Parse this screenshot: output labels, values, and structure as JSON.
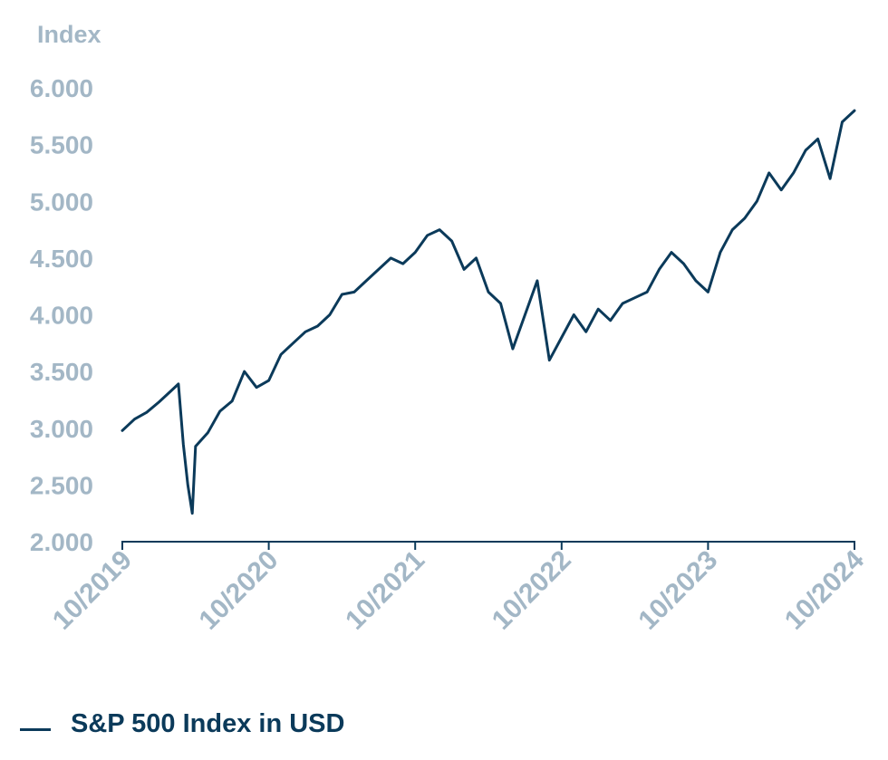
{
  "chart_data": {
    "type": "line",
    "ylabel": "Index",
    "ylim": [
      2000,
      6000
    ],
    "yticks": [
      "6.000",
      "5.500",
      "5.000",
      "4.500",
      "4.000",
      "3.500",
      "3.000",
      "2.500",
      "2.000"
    ],
    "ytick_values": [
      6000,
      5500,
      5000,
      4500,
      4000,
      3500,
      3000,
      2500,
      2000
    ],
    "xticks": [
      "10/2019",
      "10/2020",
      "10/2021",
      "10/2022",
      "10/2023",
      "10/2024"
    ],
    "xlim": [
      "2019-10",
      "2024-10"
    ],
    "grid": false,
    "legend_position": "bottom-left",
    "series": [
      {
        "name": "S&P 500 Index in USD",
        "color": "#0b3a5a",
        "x": [
          "2019-10",
          "2019-11",
          "2019-12",
          "2020-01",
          "2020-02",
          "2020-02-19",
          "2020-03",
          "2020-03-12",
          "2020-03-23",
          "2020-04",
          "2020-05",
          "2020-06",
          "2020-07",
          "2020-08",
          "2020-09",
          "2020-10",
          "2020-11",
          "2020-12",
          "2021-01",
          "2021-02",
          "2021-03",
          "2021-04",
          "2021-05",
          "2021-06",
          "2021-07",
          "2021-08",
          "2021-09",
          "2021-10",
          "2021-11",
          "2021-12",
          "2022-01",
          "2022-02",
          "2022-03",
          "2022-04",
          "2022-05",
          "2022-06",
          "2022-07",
          "2022-08",
          "2022-09",
          "2022-10",
          "2022-11",
          "2022-12",
          "2023-01",
          "2023-02",
          "2023-03",
          "2023-04",
          "2023-05",
          "2023-06",
          "2023-07",
          "2023-08",
          "2023-09",
          "2023-10",
          "2023-11",
          "2023-12",
          "2024-01",
          "2024-02",
          "2024-03",
          "2024-04",
          "2024-05",
          "2024-06",
          "2024-07",
          "2024-08",
          "2024-09",
          "2024-10"
        ],
        "values": [
          2980,
          3080,
          3140,
          3230,
          3330,
          3390,
          2860,
          2500,
          2250,
          2840,
          2960,
          3150,
          3240,
          3500,
          3360,
          3420,
          3650,
          3750,
          3850,
          3900,
          4000,
          4180,
          4200,
          4300,
          4400,
          4500,
          4450,
          4550,
          4700,
          4750,
          4650,
          4400,
          4500,
          4200,
          4100,
          3700,
          4000,
          4300,
          3600,
          3800,
          4000,
          3850,
          4050,
          3950,
          4100,
          4150,
          4200,
          4400,
          4550,
          4450,
          4300,
          4200,
          4550,
          4750,
          4850,
          5000,
          5250,
          5100,
          5250,
          5450,
          5550,
          5200,
          5700,
          5800
        ]
      }
    ]
  }
}
